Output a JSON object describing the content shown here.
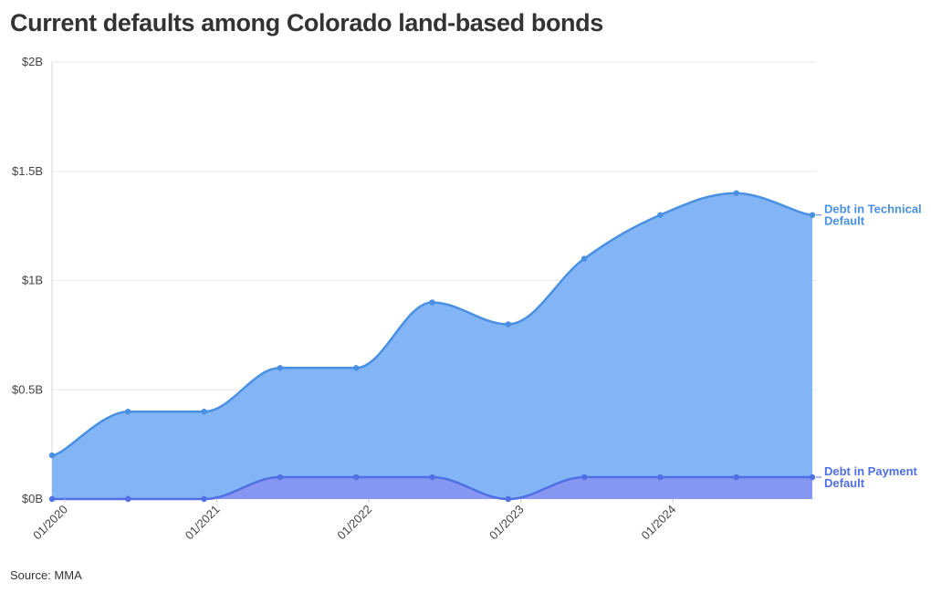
{
  "title": "Current defaults among Colorado land-based bonds",
  "source": "Source: MMA",
  "chart_data": {
    "type": "area",
    "x": [
      "2019-12",
      "2020-06",
      "2020-12",
      "2021-06",
      "2021-12",
      "2022-06",
      "2022-12",
      "2023-06",
      "2023-12",
      "2024-06",
      "2024-12"
    ],
    "series": [
      {
        "name": "Debt in Technical Default",
        "label_lines": [
          "Debt in Technical",
          "Default"
        ],
        "values": [
          0.2,
          0.4,
          0.4,
          0.6,
          0.6,
          0.9,
          0.8,
          1.1,
          1.3,
          1.4,
          1.3
        ],
        "color": "#4a90e2",
        "fill": "#82b4f6"
      },
      {
        "name": "Debt in Payment Default",
        "label_lines": [
          "Debt in Payment",
          "Default"
        ],
        "values": [
          0,
          0,
          0,
          0.1,
          0.1,
          0.1,
          0,
          0.1,
          0.1,
          0.1,
          0.1
        ],
        "color": "#4f6fe3",
        "fill": "#8597f0"
      }
    ],
    "x_ticks": [
      "01/2020",
      "01/2021",
      "01/2022",
      "01/2023",
      "01/2024"
    ],
    "y_ticks": [
      "$0B",
      "$0.5B",
      "$1B",
      "$1.5B",
      "$2B"
    ],
    "y_tick_values": [
      0,
      0.5,
      1,
      1.5,
      2
    ],
    "ylim": [
      0,
      2
    ],
    "y_unit": "billion USD",
    "grid": true,
    "legend": "direct labels at right end of series"
  }
}
